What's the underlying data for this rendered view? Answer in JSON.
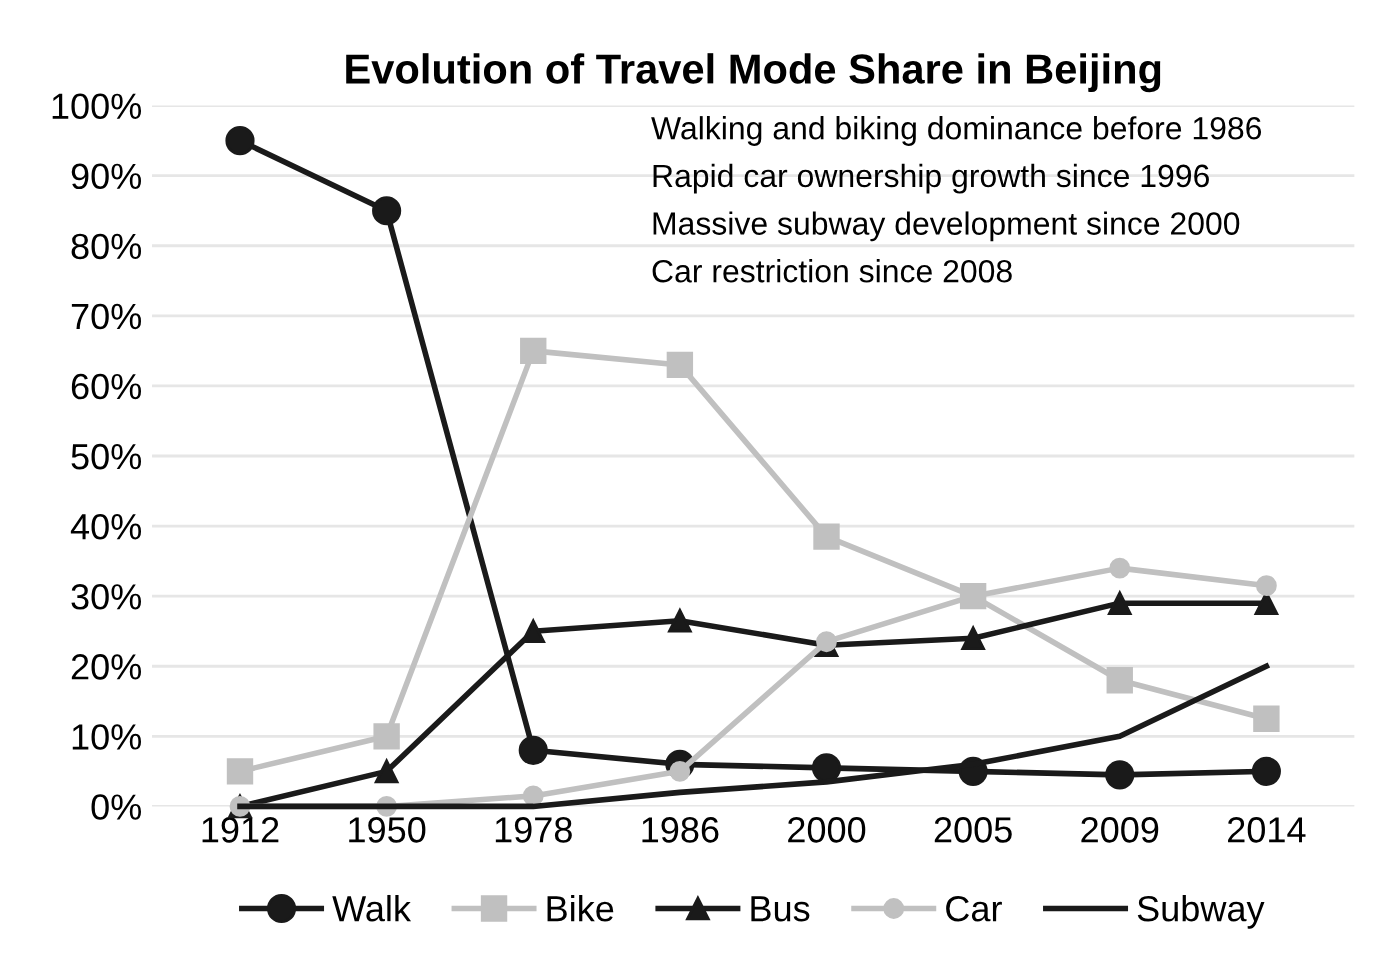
{
  "chart_data": {
    "type": "line",
    "title": "Evolution of Travel Mode Share in Beijing",
    "categories": [
      "1912",
      "1950",
      "1978",
      "1986",
      "2000",
      "2005",
      "2009",
      "2014"
    ],
    "series": [
      {
        "name": "Walk",
        "color": "#1a1a1a",
        "marker": "circle",
        "values": [
          95,
          85,
          8,
          6,
          5.5,
          5,
          4.5,
          5
        ]
      },
      {
        "name": "Bike",
        "color": "#c0c0c0",
        "marker": "square",
        "values": [
          5,
          10,
          65,
          63,
          38.5,
          30,
          18,
          12.5
        ]
      },
      {
        "name": "Bus",
        "color": "#1a1a1a",
        "marker": "triangle",
        "values": [
          0,
          5,
          25,
          26.5,
          23,
          24,
          29,
          29
        ]
      },
      {
        "name": "Car",
        "color": "#c0c0c0",
        "marker": "circle",
        "values": [
          0,
          0,
          1.5,
          5,
          23.5,
          30,
          34,
          31.5
        ]
      },
      {
        "name": "Subway",
        "color": "#1a1a1a",
        "marker": "none",
        "values": [
          0,
          0,
          0,
          2,
          3.5,
          6,
          10,
          20
        ]
      }
    ],
    "ylim": [
      0,
      100
    ],
    "yticks": [
      {
        "value": 0,
        "label": "0%"
      },
      {
        "value": 10,
        "label": "10%"
      },
      {
        "value": 20,
        "label": "20%"
      },
      {
        "value": 30,
        "label": "30%"
      },
      {
        "value": 40,
        "label": "40%"
      },
      {
        "value": 50,
        "label": "50%"
      },
      {
        "value": 60,
        "label": "60%"
      },
      {
        "value": 70,
        "label": "70%"
      },
      {
        "value": 80,
        "label": "80%"
      },
      {
        "value": 90,
        "label": "90%"
      },
      {
        "value": 100,
        "label": "100%"
      }
    ],
    "grid": "y",
    "legend": "bottom",
    "annotations": [
      "Walking and biking dominance before 1986",
      "Rapid car ownership growth since 1996",
      "Massive subway development since 2000",
      "Car restriction since 2008"
    ]
  }
}
